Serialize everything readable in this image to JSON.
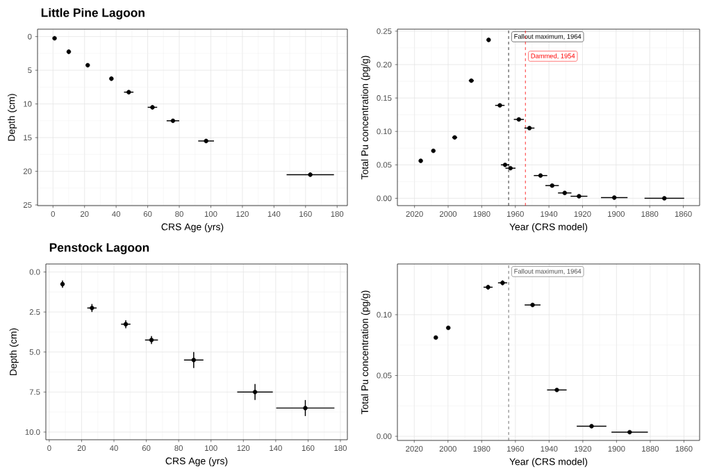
{
  "chart_data": [
    {
      "type": "scatter",
      "title": "Little Pine Lagoon",
      "xlabel": "CRS Age (yrs)",
      "ylabel": "Depth (cm)",
      "color": "#000000",
      "marker": "circle",
      "grid": true,
      "x": [
        1,
        10,
        22,
        37,
        48,
        63,
        76,
        97,
        163
      ],
      "values": [
        0.25,
        2.25,
        4.25,
        6.25,
        8.25,
        10.5,
        12.5,
        15.5,
        20.5
      ],
      "xerrors": [
        1,
        1,
        1,
        1,
        3,
        3,
        4,
        5,
        15
      ],
      "errors": [
        0.3,
        0.3,
        0.3,
        0.3,
        0.3,
        0.3,
        0.3,
        0.3,
        0.3
      ],
      "xlim": [
        -9.8,
        186.5
      ],
      "ylim": [
        25.1,
        -1.1
      ],
      "xticks": [
        0,
        20,
        40,
        60,
        80,
        100,
        120,
        140,
        160,
        180
      ],
      "yticks": [
        0,
        5,
        10,
        15,
        20,
        25
      ]
    },
    {
      "type": "scatter",
      "xlabel": "Year (CRS model)",
      "ylabel": "Total Pu concentration (pg/g)",
      "color": "#000000",
      "marker": "circle",
      "grid": true,
      "x": [
        2016.3,
        2008.8,
        1996.1,
        1986.2,
        1975.9,
        1969.2,
        1966.1,
        1962.9,
        1957.9,
        1951.6,
        1945.0,
        1938.1,
        1930.6,
        1922.1,
        1901.1,
        1871.3
      ],
      "values": [
        0.056,
        0.071,
        0.091,
        0.176,
        0.237,
        0.139,
        0.05,
        0.045,
        0.118,
        0.105,
        0.034,
        0.019,
        0.008,
        0.003,
        0.001,
        0.0
      ],
      "xerrors": [
        1,
        1,
        1.5,
        1.5,
        1,
        2.8,
        2.5,
        3,
        3,
        3,
        4,
        4,
        4,
        5,
        7.9,
        11.8
      ],
      "errors": [
        null,
        null,
        null,
        null,
        0.003,
        null,
        null,
        null,
        null,
        null,
        null,
        null,
        null,
        null,
        null,
        null
      ],
      "xlim": [
        2030.2,
        1850.3
      ],
      "ylim": [
        -0.011,
        0.253
      ],
      "xticks": [
        2020,
        2000,
        1980,
        1960,
        1940,
        1920,
        1900,
        1880,
        1860
      ],
      "yticks": [
        {
          "value": 0,
          "label": "0.00"
        },
        {
          "value": 0.05,
          "label": "0.05"
        },
        {
          "value": 0.1,
          "label": "0.10"
        },
        {
          "value": 0.15,
          "label": "0.15"
        },
        {
          "value": 0.2,
          "label": "0.20"
        },
        {
          "value": 0.25,
          "label": "0.25"
        }
      ],
      "ref_lines": [
        {
          "axis": "x",
          "value": 1964,
          "label": "Fallout maximum, 1964",
          "color": "#000000",
          "line_style": "dashed"
        },
        {
          "axis": "x",
          "value": 1954,
          "label": "Dammed, 1954",
          "color": "#ff0000",
          "line_style": "dashed"
        }
      ]
    },
    {
      "type": "scatter",
      "title": "Penstock Lagoon",
      "xlabel": "CRS Age (yrs)",
      "ylabel": "Depth (cm)",
      "color": "#000000",
      "marker": "circle",
      "grid": true,
      "x": [
        8.2,
        26.4,
        47.3,
        63.2,
        89.3,
        127.2,
        158.3
      ],
      "values": [
        0.76,
        2.25,
        3.26,
        4.25,
        5.5,
        7.5,
        8.5
      ],
      "xerrors": [
        1,
        2.9,
        2.9,
        4,
        6,
        11,
        18
      ],
      "errors": [
        0.23,
        0.25,
        0.25,
        0.25,
        0.5,
        0.5,
        0.5
      ],
      "xlim": [
        -2.1,
        184.3
      ],
      "ylim": [
        10.48,
        -0.5
      ],
      "xticks": [
        0,
        20,
        40,
        60,
        80,
        100,
        120,
        140,
        160,
        180
      ],
      "yticks": [
        {
          "value": 0,
          "label": "0.0"
        },
        2.5,
        {
          "value": 5,
          "label": "5.0"
        },
        7.5,
        {
          "value": 10,
          "label": "10.0"
        }
      ]
    },
    {
      "type": "scatter",
      "xlabel": "Year (CRS model)",
      "ylabel": "Total Pu concentration (pg/g)",
      "color": "#000000",
      "marker": "circle",
      "grid": true,
      "x": [
        2007.2,
        1999.8,
        1976.2,
        1967.6,
        1949.8,
        1935.4,
        1914.8,
        1892.2
      ],
      "values": [
        0.0812,
        0.0892,
        0.1226,
        0.1262,
        0.108,
        0.0381,
        0.0083,
        0.0034
      ],
      "xerrors": [
        1,
        1,
        2.7,
        2.7,
        4.7,
        5.8,
        8.8,
        10.8
      ],
      "errors": [
        null,
        null,
        0.002,
        0.002,
        null,
        null,
        null,
        null
      ],
      "xlim": [
        2030.0,
        1850.7
      ],
      "ylim": [
        -0.0034,
        0.1417
      ],
      "xticks": [
        2020,
        2000,
        1980,
        1960,
        1940,
        1920,
        1900,
        1880,
        1860
      ],
      "yticks": [
        {
          "value": 0,
          "label": "0.00"
        },
        {
          "value": 0.05,
          "label": "0.05"
        },
        {
          "value": 0.1,
          "label": "0.10"
        }
      ],
      "ref_lines": [
        {
          "axis": "x",
          "value": 1964,
          "label": "Fallout maximum, 1964",
          "color": "#4d4d4d",
          "line_style": "dashed"
        }
      ]
    }
  ]
}
